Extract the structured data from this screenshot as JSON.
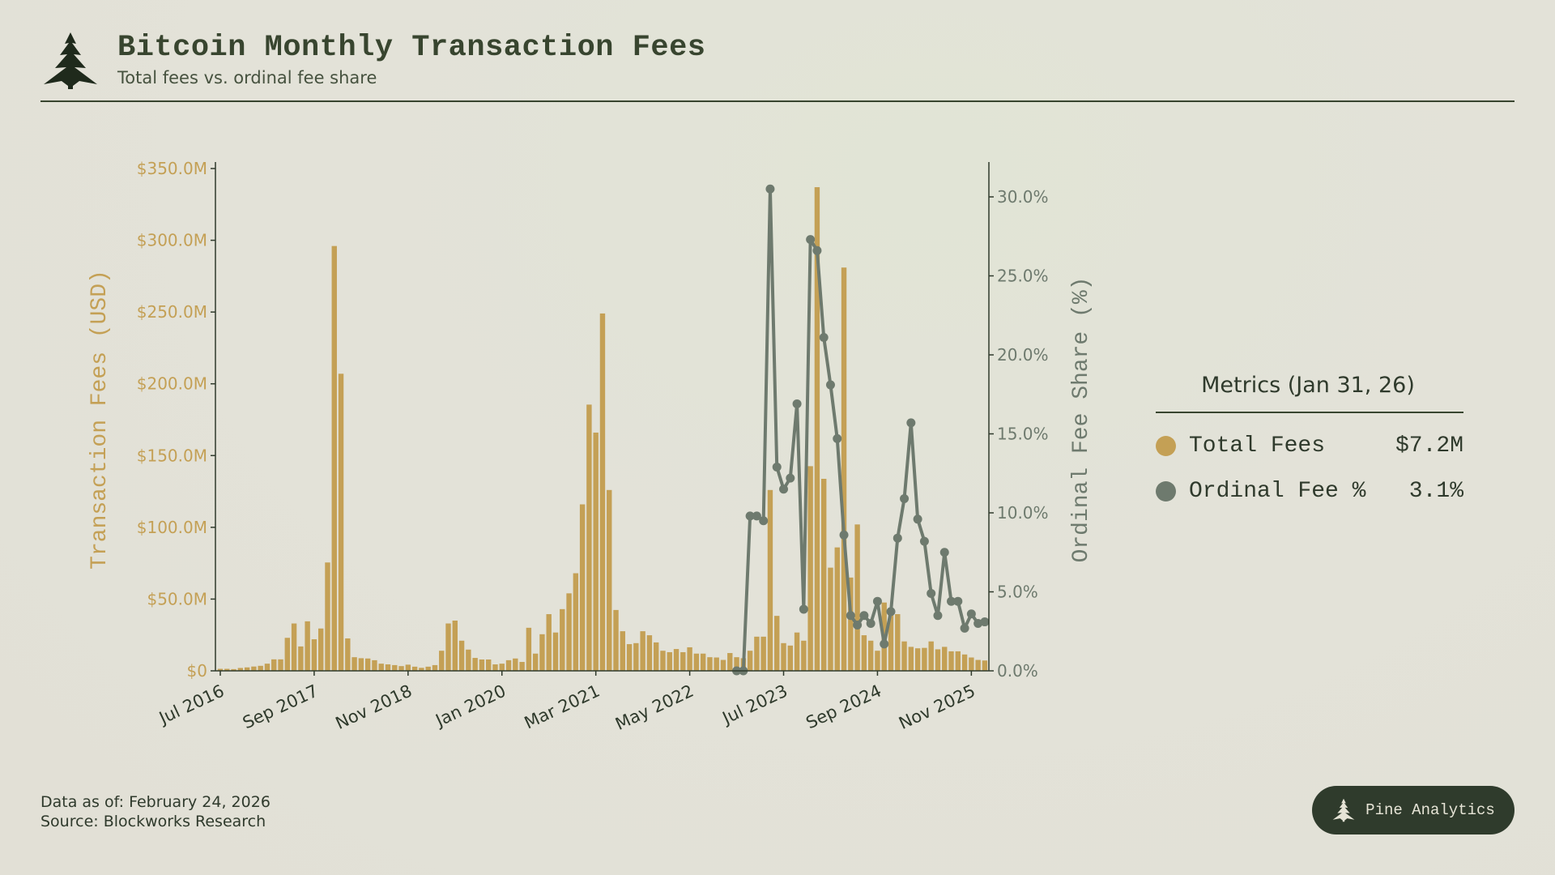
{
  "header": {
    "title": "Bitcoin Monthly Transaction Fees",
    "subtitle": "Total fees vs. ordinal fee share",
    "logo_icon": "pine-tree-icon"
  },
  "colors": {
    "fees": "#c4a055",
    "ordinal": "#6e7a6e",
    "ink": "#2f3a2c",
    "badge_bg": "#2f3b2c"
  },
  "chart_data": {
    "type": "bar+line",
    "title": "Bitcoin Monthly Transaction Fees",
    "x_start": "Jul 2016",
    "x_tick_labels": [
      "Jul 2016",
      "Sep 2017",
      "Nov 2018",
      "Jan 2020",
      "Mar 2021",
      "May 2022",
      "Jul 2023",
      "Sep 2024",
      "Nov 2025"
    ],
    "x_tick_every_months": 14,
    "ylabel_left": "Transaction Fees (USD)",
    "ylabel_right": "Ordinal Fee Share (%)",
    "ylim_left": [
      0,
      355
    ],
    "ylim_right": [
      0,
      32
    ],
    "yticks_left": [
      "$0",
      "$50.0M",
      "$100.0M",
      "$150.0M",
      "$200.0M",
      "$250.0M",
      "$300.0M",
      "$350.0M"
    ],
    "yticks_left_values": [
      0,
      50,
      100,
      150,
      200,
      250,
      300,
      350
    ],
    "yticks_right": [
      "0.0%",
      "5.0%",
      "10.0%",
      "15.0%",
      "20.0%",
      "25.0%",
      "30.0%"
    ],
    "yticks_right_values": [
      0,
      5,
      10,
      15,
      20,
      25,
      30
    ],
    "series": [
      {
        "name": "Total Fees",
        "unit": "USD millions",
        "type": "bar",
        "values": [
          1.4,
          1.4,
          1.2,
          2,
          2.4,
          3,
          3.5,
          5,
          8,
          8,
          23,
          33,
          17,
          34.5,
          22,
          29.5,
          75.5,
          296,
          207,
          22.6,
          9.5,
          8.8,
          8.6,
          7.4,
          5,
          4.5,
          4,
          3.3,
          4.3,
          2.9,
          2.1,
          2.9,
          4,
          14,
          33,
          35,
          21,
          14.8,
          9,
          7.9,
          7.9,
          4.5,
          5,
          7.4,
          8.6,
          6.2,
          30,
          12,
          25.5,
          39.5,
          26.7,
          43,
          54,
          68,
          116,
          185.5,
          166,
          249,
          126,
          42.4,
          27.6,
          18.6,
          19.3,
          27.6,
          24.8,
          19.8,
          14,
          13,
          15.2,
          13,
          16.4,
          12,
          12,
          9.5,
          9.3,
          7.6,
          12.4,
          9.5,
          8.8,
          14,
          23.8,
          23.8,
          126,
          38.3,
          19.3,
          17.6,
          26.7,
          21,
          142.6,
          337,
          133.8,
          71.9,
          86,
          281,
          65,
          102,
          24.8,
          21,
          14,
          47.6,
          42,
          39.5,
          20.5,
          16.7,
          15.7,
          16,
          20.5,
          15,
          16.7,
          13.6,
          13.6,
          11.4,
          9.3,
          7.6,
          7.2
        ]
      },
      {
        "name": "Ordinal Fee %",
        "unit": "percent",
        "type": "line",
        "start_index": 77,
        "values": [
          0,
          0,
          9.8,
          9.8,
          9.5,
          30.5,
          12.9,
          11.5,
          12.2,
          16.9,
          3.9,
          27.3,
          26.6,
          21.1,
          18.1,
          14.7,
          8.6,
          3.5,
          2.9,
          3.5,
          3.0,
          4.4,
          1.7,
          3.75,
          8.4,
          10.9,
          15.7,
          9.6,
          8.2,
          4.9,
          3.5,
          7.5,
          4.4,
          4.4,
          2.7,
          3.6,
          3.0,
          3.1
        ]
      }
    ],
    "grid": false
  },
  "metrics": {
    "title": "Metrics (Jan 31, 26)",
    "rows": [
      {
        "label": "Total Fees",
        "value": "$7.2M"
      },
      {
        "label": "Ordinal Fee %",
        "value": "3.1%"
      }
    ]
  },
  "footer": {
    "data_as_of": "Data as of: February 24, 2026",
    "source": "Source: Blockworks Research"
  },
  "badge": {
    "label": "Pine Analytics",
    "icon": "pine-tree-icon"
  }
}
